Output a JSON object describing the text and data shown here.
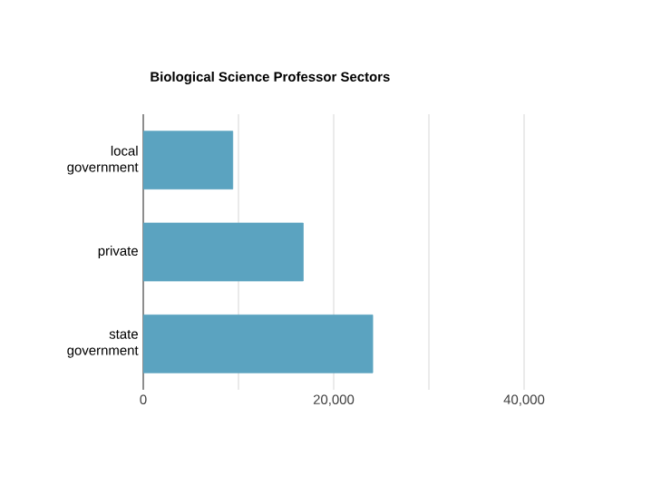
{
  "chart_data": {
    "type": "bar",
    "orientation": "horizontal",
    "title": "Biological Science Professor Sectors",
    "categories": [
      "local government",
      "private",
      "state government"
    ],
    "values": [
      9400,
      16800,
      24100
    ],
    "color": "#5ba3c0",
    "xlim": [
      0,
      40000
    ],
    "xticks": [
      0,
      {
        "value": 10000,
        "label": null
      },
      {
        "value": 20000,
        "label": "20,000"
      },
      {
        "value": 30000,
        "label": null
      },
      {
        "value": 40000,
        "label": "40,000"
      }
    ],
    "grid": "x"
  }
}
